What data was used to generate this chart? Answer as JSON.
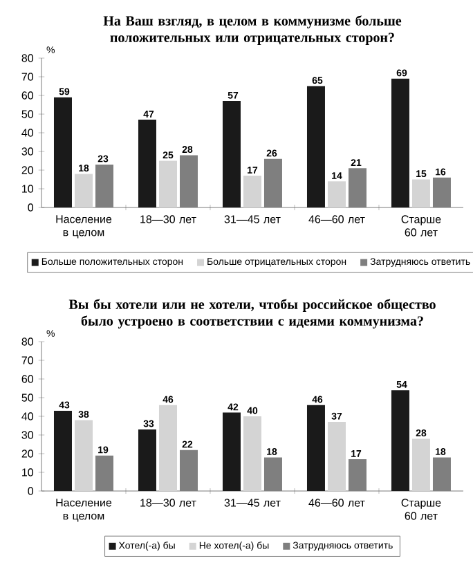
{
  "chart_data": [
    {
      "type": "bar",
      "title": "На Ваш взгляд, в целом в коммунизме больше положительных или отрицательных сторон?",
      "ylabel": "%",
      "categories": [
        "Население в целом",
        "18—30 лет",
        "31—45 лет",
        "46—60 лет",
        "Старше 60 лет"
      ],
      "ylim": [
        0,
        80
      ],
      "yticks": [
        0,
        10,
        20,
        30,
        40,
        50,
        60,
        70,
        80
      ],
      "data_labels": true,
      "legend": "bottom",
      "series": [
        {
          "name": "Больше положительных сторон",
          "color": "#1a1a1a",
          "values": [
            59,
            47,
            57,
            65,
            69
          ]
        },
        {
          "name": "Больше отрицательных сторон",
          "color": "#d4d4d4",
          "values": [
            18,
            25,
            17,
            14,
            15
          ]
        },
        {
          "name": "Затрудняюсь ответить",
          "color": "#7f7f7f",
          "values": [
            23,
            28,
            26,
            21,
            16
          ]
        }
      ]
    },
    {
      "type": "bar",
      "title": "Вы бы хотели или не хотели, чтобы российское общество было устроено в соответствии с идеями коммунизма?",
      "ylabel": "%",
      "categories": [
        "Население в целом",
        "18—30 лет",
        "31—45 лет",
        "46—60 лет",
        "Старше 60 лет"
      ],
      "ylim": [
        0,
        80
      ],
      "yticks": [
        0,
        10,
        20,
        30,
        40,
        50,
        60,
        70,
        80
      ],
      "data_labels": true,
      "legend": "bottom",
      "series": [
        {
          "name": "Хотел(-а) бы",
          "color": "#1a1a1a",
          "values": [
            43,
            33,
            42,
            46,
            54
          ]
        },
        {
          "name": "Не хотел(-а) бы",
          "color": "#d4d4d4",
          "values": [
            38,
            46,
            40,
            37,
            28
          ]
        },
        {
          "name": "Затрудняюсь ответить",
          "color": "#7f7f7f",
          "values": [
            19,
            22,
            18,
            17,
            18
          ]
        }
      ]
    }
  ]
}
